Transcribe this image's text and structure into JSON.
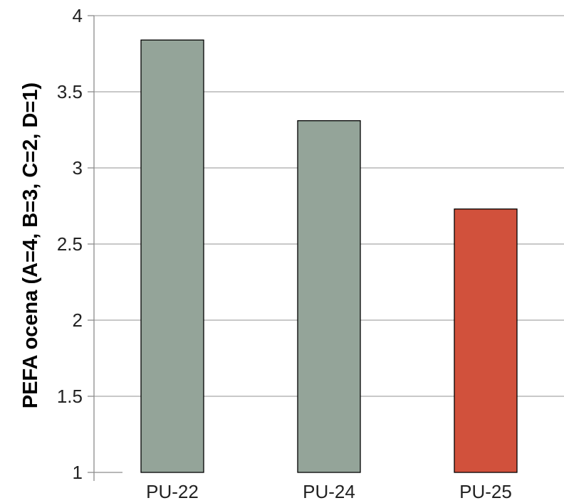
{
  "chart_data": {
    "type": "bar",
    "categories": [
      "PU-22",
      "PU-24",
      "PU-25"
    ],
    "values": [
      3.84,
      3.31,
      2.73
    ],
    "bar_colors": [
      "#94a499",
      "#94a499",
      "#d1513c"
    ],
    "title": "",
    "xlabel": "",
    "ylabel": "PEFA ocena (A=4, B=3, C=2, D=1)",
    "ylim": [
      1,
      4
    ],
    "yticks": [
      "1",
      "1.5",
      "2",
      "2.5",
      "3",
      "3.5",
      "4"
    ],
    "grid": true
  }
}
